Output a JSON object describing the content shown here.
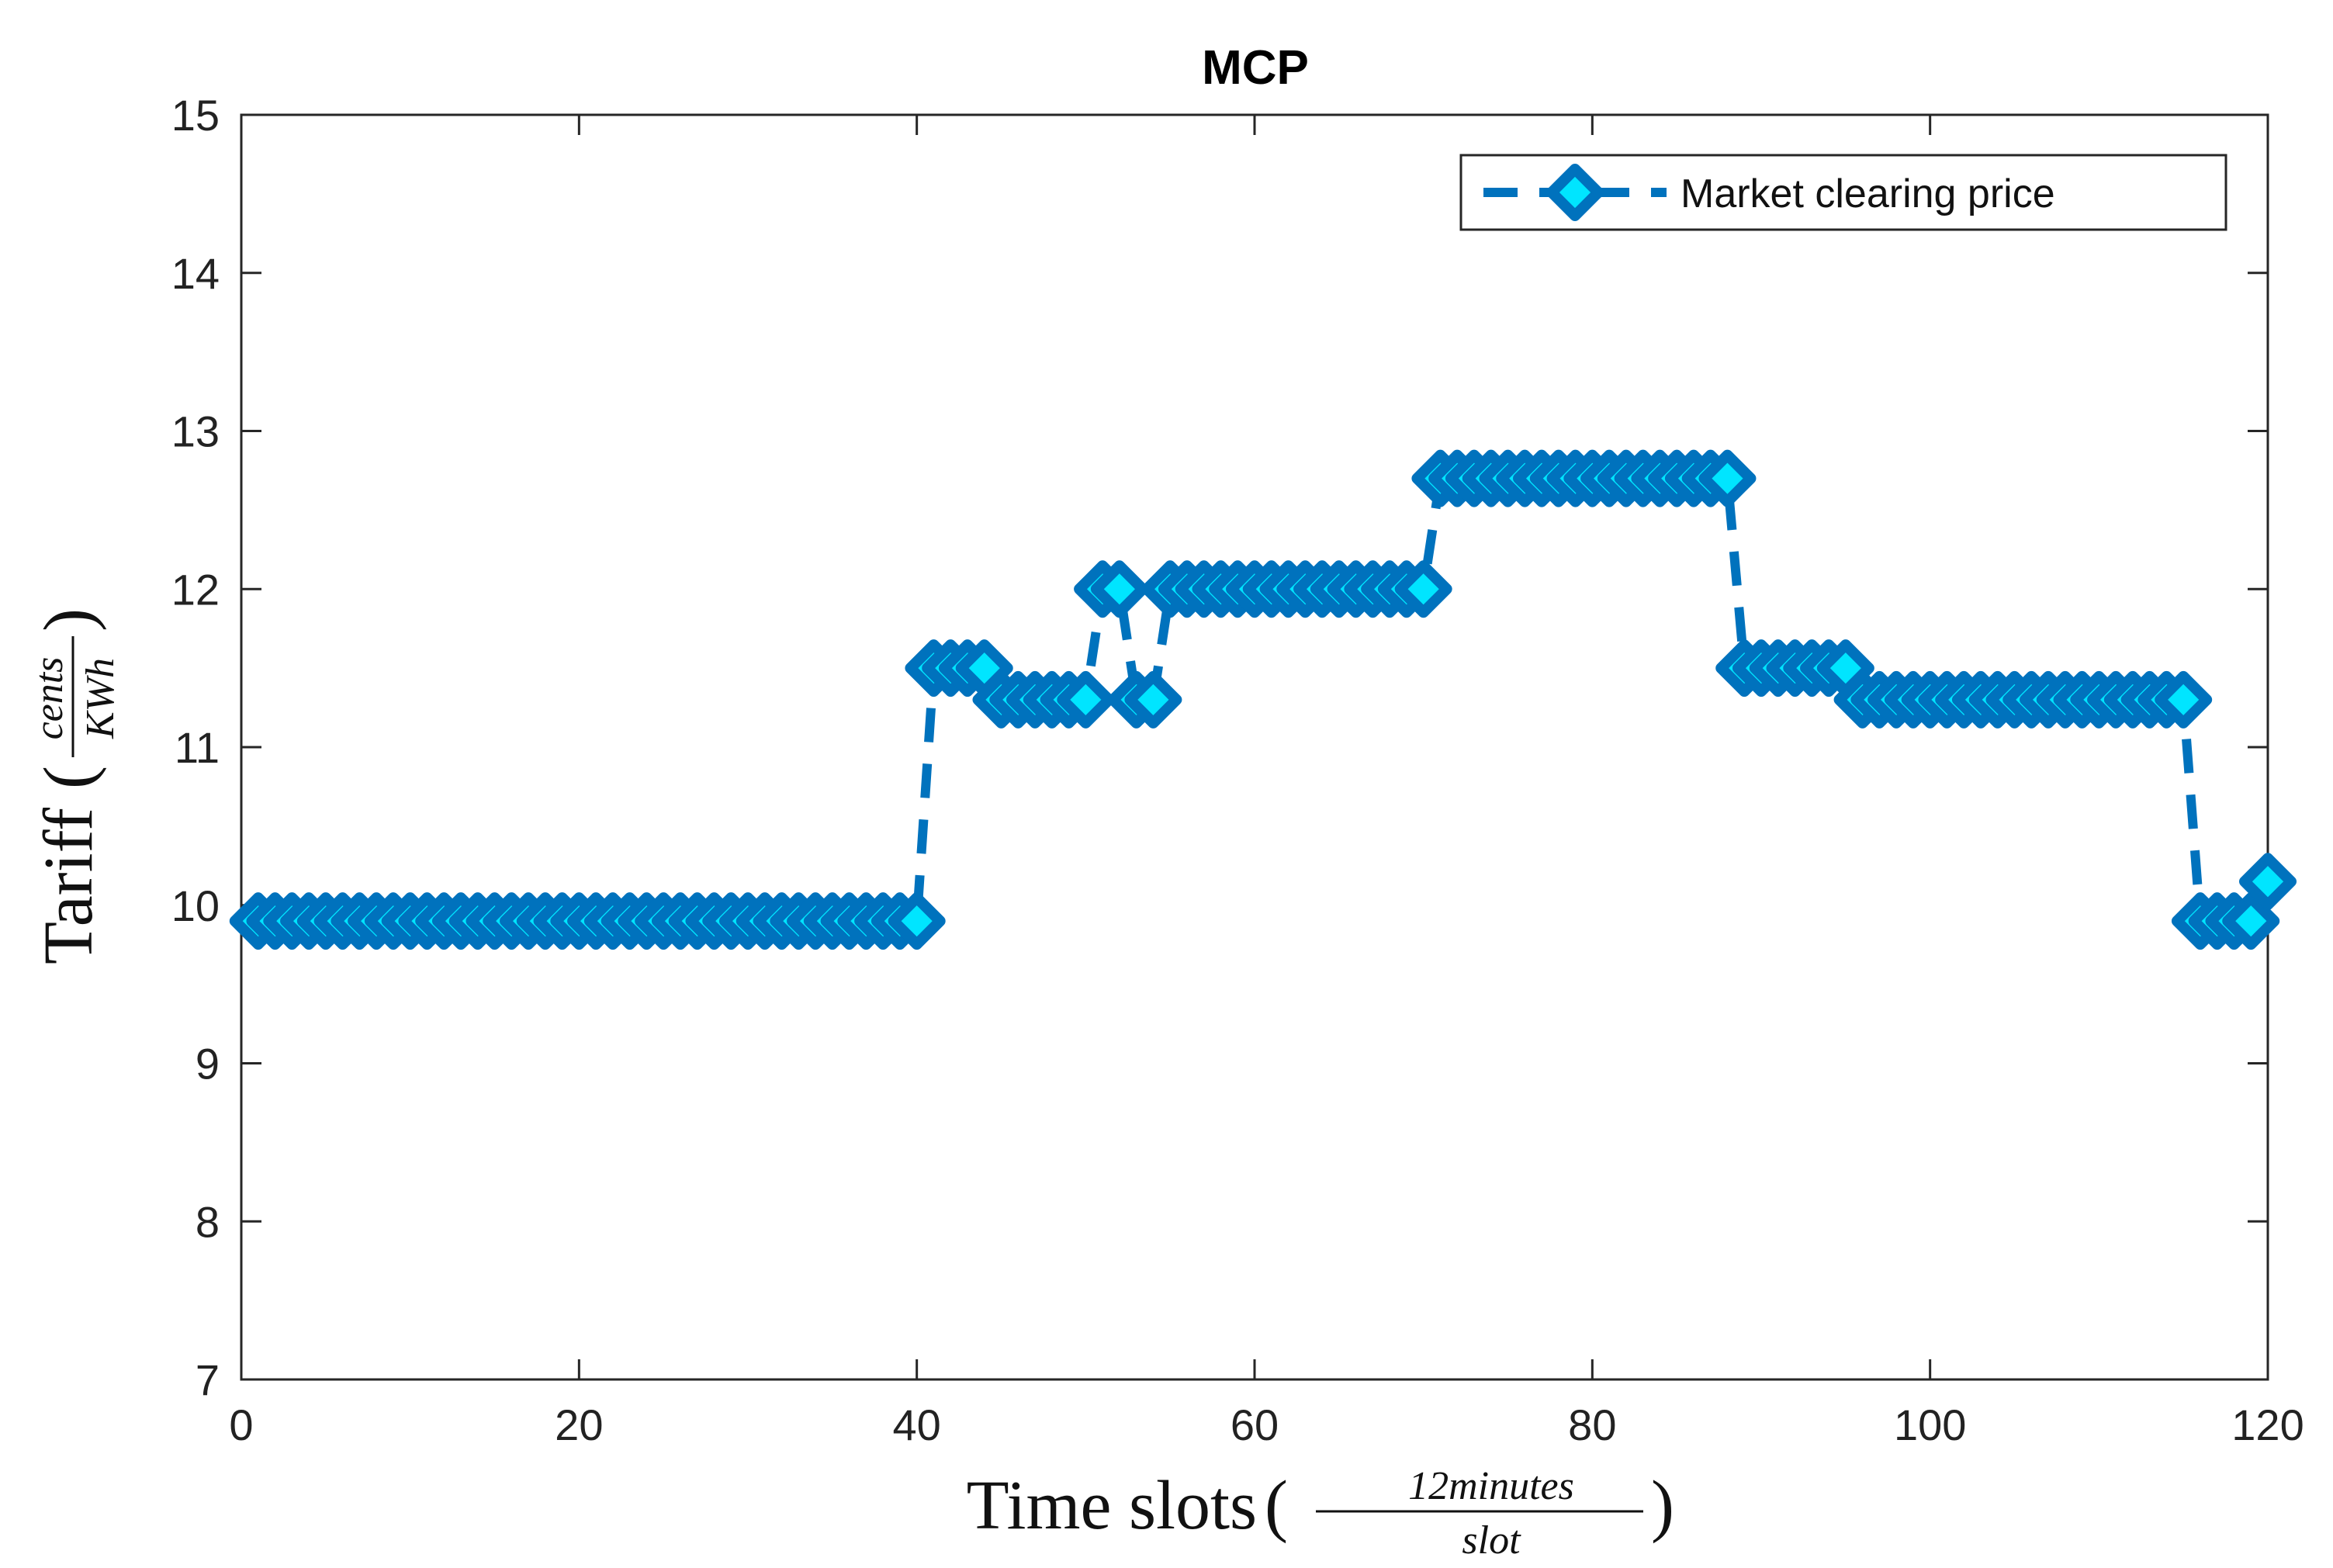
{
  "chart_data": {
    "type": "line",
    "title": "MCP",
    "xlabel": "Time slots",
    "xlabel_fraction": {
      "numerator": "12minutes",
      "denominator": "slot"
    },
    "ylabel": "Tariff",
    "ylabel_fraction": {
      "numerator": "cents",
      "denominator": "KWh"
    },
    "xlim": [
      0,
      120
    ],
    "ylim": [
      7,
      15
    ],
    "xticks": [
      "0",
      "20",
      "40",
      "60",
      "80",
      "100",
      "120"
    ],
    "yticks": [
      "7",
      "8",
      "9",
      "10",
      "11",
      "12",
      "13",
      "14",
      "15"
    ],
    "grid": false,
    "legend_position": "top-right",
    "series": [
      {
        "name": "Market clearing price",
        "color": "#0072BD",
        "marker_face": "#00E5FF",
        "line_style": "dashed",
        "marker": "diamond",
        "x": [
          1,
          2,
          3,
          4,
          5,
          6,
          7,
          8,
          9,
          10,
          11,
          12,
          13,
          14,
          15,
          16,
          17,
          18,
          19,
          20,
          21,
          22,
          23,
          24,
          25,
          26,
          27,
          28,
          29,
          30,
          31,
          32,
          33,
          34,
          35,
          36,
          37,
          38,
          39,
          40,
          41,
          42,
          43,
          44,
          45,
          46,
          47,
          48,
          49,
          50,
          51,
          52,
          53,
          54,
          55,
          56,
          57,
          58,
          59,
          60,
          61,
          62,
          63,
          64,
          65,
          66,
          67,
          68,
          69,
          70,
          71,
          72,
          73,
          74,
          75,
          76,
          77,
          78,
          79,
          80,
          81,
          82,
          83,
          84,
          85,
          86,
          87,
          88,
          89,
          90,
          91,
          92,
          93,
          94,
          95,
          96,
          97,
          98,
          99,
          100,
          101,
          102,
          103,
          104,
          105,
          106,
          107,
          108,
          109,
          110,
          111,
          112,
          113,
          114,
          115,
          116,
          117,
          118,
          119,
          120
        ],
        "y": [
          9.9,
          9.9,
          9.9,
          9.9,
          9.9,
          9.9,
          9.9,
          9.9,
          9.9,
          9.9,
          9.9,
          9.9,
          9.9,
          9.9,
          9.9,
          9.9,
          9.9,
          9.9,
          9.9,
          9.9,
          9.9,
          9.9,
          9.9,
          9.9,
          9.9,
          9.9,
          9.9,
          9.9,
          9.9,
          9.9,
          9.9,
          9.9,
          9.9,
          9.9,
          9.9,
          9.9,
          9.9,
          9.9,
          9.9,
          9.9,
          11.5,
          11.5,
          11.5,
          11.5,
          11.3,
          11.3,
          11.3,
          11.3,
          11.3,
          11.3,
          12.0,
          12.0,
          11.3,
          11.3,
          12.0,
          12.0,
          12.0,
          12.0,
          12.0,
          12.0,
          12.0,
          12.0,
          12.0,
          12.0,
          12.0,
          12.0,
          12.0,
          12.0,
          12.0,
          12.0,
          12.7,
          12.7,
          12.7,
          12.7,
          12.7,
          12.7,
          12.7,
          12.7,
          12.7,
          12.7,
          12.7,
          12.7,
          12.7,
          12.7,
          12.7,
          12.7,
          12.7,
          12.7,
          11.5,
          11.5,
          11.5,
          11.5,
          11.5,
          11.5,
          11.5,
          11.3,
          11.3,
          11.3,
          11.3,
          11.3,
          11.3,
          11.3,
          11.3,
          11.3,
          11.3,
          11.3,
          11.3,
          11.3,
          11.3,
          11.3,
          11.3,
          11.3,
          11.3,
          11.3,
          11.3,
          9.9,
          9.9,
          9.9,
          9.9,
          10.15
        ]
      }
    ]
  }
}
